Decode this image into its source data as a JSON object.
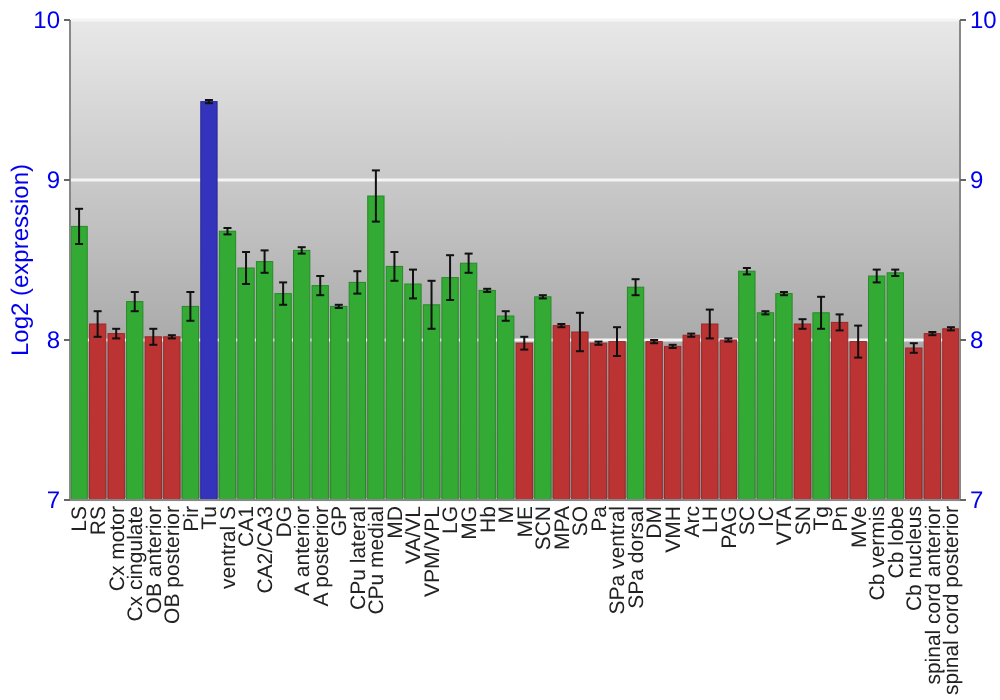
{
  "chart_data": {
    "type": "bar",
    "ylabel": "Log2 (expression)",
    "categories": [
      "LS",
      "RS",
      "Cx motor",
      "Cx cingulate",
      "OB anterior",
      "OB posterior",
      "Pir",
      "Tu",
      "ventral S",
      "CA1",
      "CA2/CA3",
      "DG",
      "A anterior",
      "A posterior",
      "GP",
      "CPu lateral",
      "CPu medial",
      "MD",
      "VA/VL",
      "VPM/VPL",
      "LG",
      "MG",
      "Hb",
      "M",
      "ME",
      "SCN",
      "MPA",
      "SO",
      "Pa",
      "SPa ventral",
      "SPa dorsal",
      "DM",
      "VMH",
      "Arc",
      "LH",
      "PAG",
      "SC",
      "IC",
      "VTA",
      "SN",
      "Tg",
      "Pn",
      "MVe",
      "Cb vermis",
      "Cb lobe",
      "Cb nucleus",
      "spinal cord anterior",
      "spinal cord posterior"
    ],
    "values": [
      8.71,
      8.1,
      8.04,
      8.24,
      8.02,
      8.02,
      8.21,
      9.49,
      8.68,
      8.45,
      8.49,
      8.29,
      8.56,
      8.34,
      8.21,
      8.36,
      8.9,
      8.46,
      8.35,
      8.22,
      8.39,
      8.48,
      8.31,
      8.15,
      7.98,
      8.27,
      8.09,
      8.05,
      7.98,
      7.99,
      8.33,
      7.99,
      7.96,
      8.03,
      8.1,
      8.0,
      8.43,
      8.17,
      8.29,
      8.1,
      8.17,
      8.11,
      7.99,
      8.4,
      8.42,
      7.95,
      8.04,
      8.07
    ],
    "errors": [
      0.11,
      0.08,
      0.03,
      0.06,
      0.05,
      0.01,
      0.09,
      0.01,
      0.02,
      0.1,
      0.07,
      0.07,
      0.02,
      0.06,
      0.01,
      0.07,
      0.16,
      0.09,
      0.09,
      0.15,
      0.14,
      0.06,
      0.01,
      0.03,
      0.04,
      0.01,
      0.01,
      0.12,
      0.01,
      0.09,
      0.05,
      0.01,
      0.01,
      0.01,
      0.09,
      0.01,
      0.02,
      0.01,
      0.01,
      0.03,
      0.1,
      0.05,
      0.1,
      0.04,
      0.02,
      0.03,
      0.01,
      0.01
    ],
    "colors": [
      "#33aa33",
      "#bb3333",
      "#bb3333",
      "#33aa33",
      "#bb3333",
      "#bb3333",
      "#33aa33",
      "#3333bb",
      "#33aa33",
      "#33aa33",
      "#33aa33",
      "#33aa33",
      "#33aa33",
      "#33aa33",
      "#33aa33",
      "#33aa33",
      "#33aa33",
      "#33aa33",
      "#33aa33",
      "#33aa33",
      "#33aa33",
      "#33aa33",
      "#33aa33",
      "#33aa33",
      "#bb3333",
      "#33aa33",
      "#bb3333",
      "#bb3333",
      "#bb3333",
      "#bb3333",
      "#33aa33",
      "#bb3333",
      "#bb3333",
      "#bb3333",
      "#bb3333",
      "#bb3333",
      "#33aa33",
      "#33aa33",
      "#33aa33",
      "#bb3333",
      "#33aa33",
      "#bb3333",
      "#bb3333",
      "#33aa33",
      "#33aa33",
      "#bb3333",
      "#bb3333",
      "#bb3333"
    ],
    "ylim": [
      7,
      10
    ],
    "yticks": [
      7,
      8,
      9,
      10
    ],
    "y2lim": [
      7,
      10
    ],
    "y2ticks": [
      7,
      8,
      9,
      10
    ],
    "grid": "y"
  }
}
